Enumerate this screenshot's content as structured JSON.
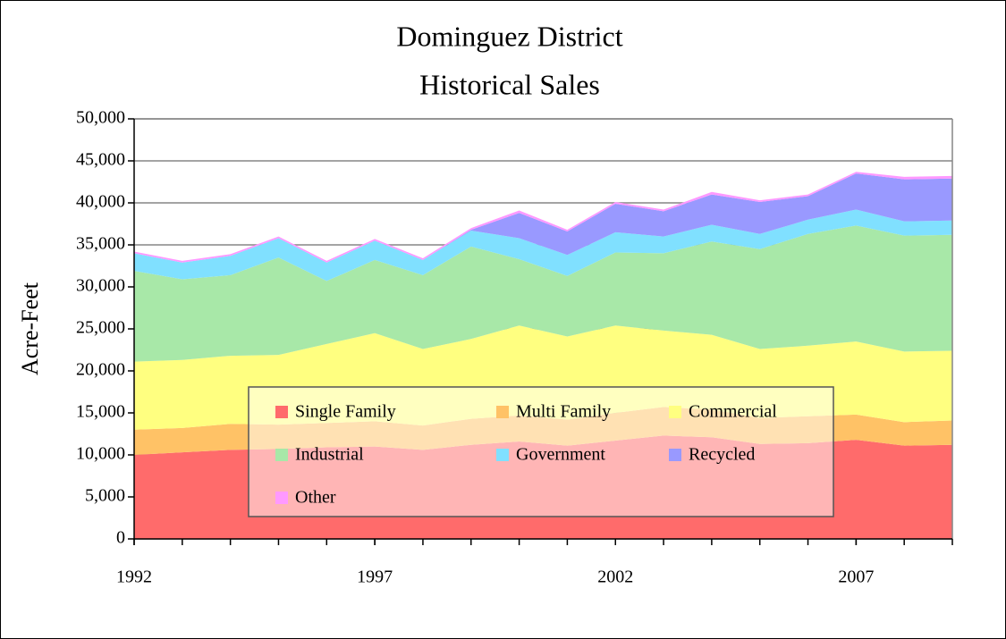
{
  "chart_data": {
    "type": "stacked_area",
    "title": [
      "Dominguez District",
      "Historical Sales"
    ],
    "y_label": "Acre-Feet",
    "x": [
      1992,
      1993,
      1994,
      1995,
      1996,
      1997,
      1998,
      1999,
      2000,
      2001,
      2002,
      2003,
      2004,
      2005,
      2006,
      2007,
      2008,
      2009
    ],
    "xlim": [
      1992,
      2009
    ],
    "xticks": [
      1992,
      1997,
      2002,
      2007
    ],
    "ylim": [
      0,
      50000
    ],
    "yticks": [
      0,
      {
        "value": 5000,
        "label": "5,000"
      },
      {
        "value": 10000,
        "label": "10,000"
      },
      {
        "value": 15000,
        "label": "15,000"
      },
      {
        "value": 20000,
        "label": "20,000"
      },
      {
        "value": 25000,
        "label": "25,000"
      },
      {
        "value": 30000,
        "label": "30,000"
      },
      {
        "value": 35000,
        "label": "35,000"
      },
      {
        "value": 40000,
        "label": "40,000"
      },
      {
        "value": 45000,
        "label": "45,000"
      },
      {
        "value": 50000,
        "label": "50,000"
      }
    ],
    "grid": true,
    "series": [
      {
        "name": "Single Family",
        "color": "#ff6b6b",
        "values": [
          10000,
          10300,
          10600,
          10700,
          10900,
          11000,
          10600,
          11200,
          11600,
          11100,
          11700,
          12300,
          12100,
          11300,
          11400,
          11800,
          11100,
          11200
        ]
      },
      {
        "name": "Multi Family",
        "color": "#ffc266",
        "values": [
          3000,
          2900,
          3100,
          2900,
          2900,
          3000,
          2900,
          3100,
          3100,
          3100,
          3300,
          3400,
          3300,
          3100,
          3200,
          3000,
          2800,
          2900
        ]
      },
      {
        "name": "Commercial",
        "color": "#ffff80",
        "values": [
          8100,
          8100,
          8100,
          8300,
          9400,
          10500,
          9100,
          9500,
          10700,
          9900,
          10400,
          9100,
          8900,
          8200,
          8400,
          8700,
          8400,
          8300
        ]
      },
      {
        "name": "Industrial",
        "color": "#a8e8a8",
        "values": [
          10800,
          9600,
          9600,
          11600,
          7500,
          8700,
          8800,
          11000,
          7900,
          7200,
          8700,
          9200,
          11100,
          11900,
          13300,
          13800,
          13800,
          13800
        ]
      },
      {
        "name": "Government",
        "color": "#80e0ff",
        "values": [
          2100,
          2000,
          2300,
          2300,
          2200,
          2300,
          1800,
          1900,
          2500,
          2500,
          2400,
          2000,
          2000,
          1800,
          1700,
          1900,
          1700,
          1700
        ]
      },
      {
        "name": "Recycled",
        "color": "#9999ff",
        "values": [
          0,
          0,
          0,
          0,
          0,
          0,
          0,
          100,
          3000,
          2800,
          3400,
          3000,
          3600,
          3800,
          2800,
          4300,
          5000,
          5000
        ]
      },
      {
        "name": "Other",
        "color": "#ff99ff",
        "values": [
          200,
          200,
          200,
          200,
          200,
          200,
          200,
          200,
          300,
          200,
          200,
          200,
          300,
          200,
          200,
          200,
          300,
          300
        ]
      }
    ],
    "legend": "bottom-center"
  }
}
